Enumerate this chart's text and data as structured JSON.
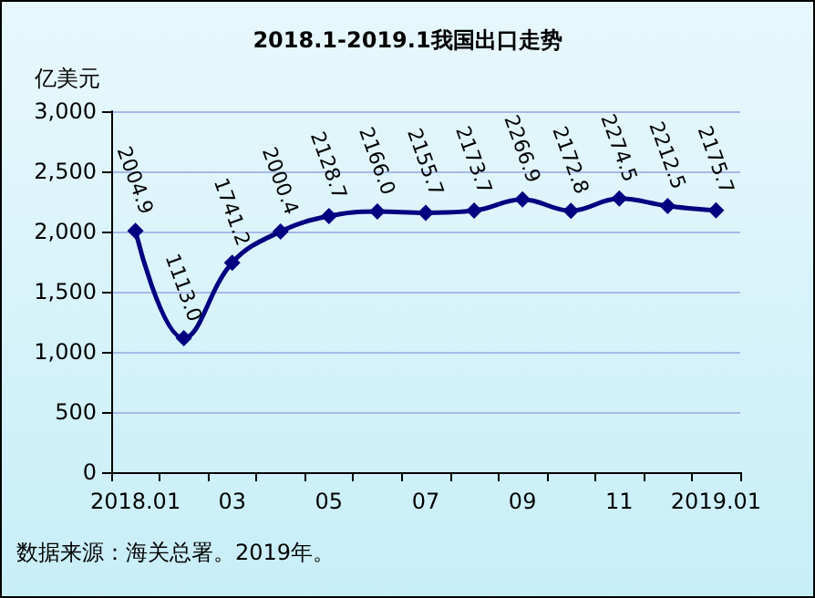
{
  "chart_data": {
    "type": "line",
    "title": "2018.1-2019.1我国出口走势",
    "ylabel": "亿美元",
    "categories": [
      "2018.01",
      null,
      "03",
      null,
      "05",
      null,
      "07",
      null,
      "09",
      null,
      "11",
      null,
      "2019.01"
    ],
    "series": [
      {
        "color": "#000080",
        "values": [
          2004.9,
          1113.0,
          1741.2,
          2000.4,
          2128.7,
          2166.0,
          2155.7,
          2173.7,
          2266.9,
          2172.8,
          2274.5,
          2212.5,
          2175.7
        ],
        "value_labels": [
          "2004.9",
          "1113.0",
          "1741.2",
          "2000.4",
          "2128.7",
          "2166.0",
          "2155.7",
          "2173.7",
          "2266.9",
          "2172.8",
          "2274.5",
          "2212.5",
          "2175.7"
        ]
      }
    ],
    "ylim": [
      0,
      3000
    ],
    "yticks": [
      0,
      500,
      {
        "value": 1000,
        "label": "1,000"
      },
      {
        "value": 1500,
        "label": "1,500"
      },
      {
        "value": 2000,
        "label": "2,000"
      },
      {
        "value": 2500,
        "label": "2,500"
      },
      {
        "value": 3000,
        "label": "3,000"
      }
    ],
    "grid": "y",
    "marker": "diamond",
    "line_style": "solid",
    "annotations": [
      "数据来源：海关总署。2019年。"
    ]
  }
}
